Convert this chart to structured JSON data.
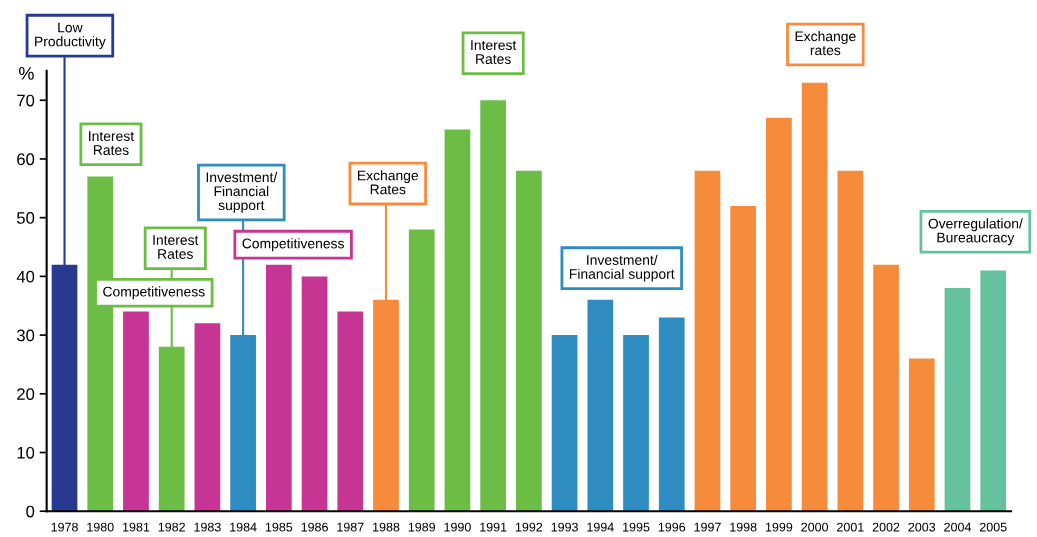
{
  "chart_data": {
    "type": "bar",
    "ylabel": "%",
    "categories": [
      "1978",
      "1980",
      "1981",
      "1982",
      "1983",
      "1984",
      "1985",
      "1986",
      "1987",
      "1988",
      "1989",
      "1990",
      "1991",
      "1992",
      "1993",
      "1994",
      "1995",
      "1996",
      "1997",
      "1998",
      "1999",
      "2000",
      "2001",
      "2002",
      "2003",
      "2004",
      "2005"
    ],
    "values": [
      42,
      57,
      34,
      28,
      32,
      30,
      42,
      40,
      34,
      36,
      48,
      65,
      70,
      58,
      30,
      36,
      30,
      33,
      58,
      52,
      67,
      73,
      58,
      42,
      26,
      38,
      41
    ],
    "colors": [
      "#283a8f",
      "#6cbd45",
      "#c63594",
      "#6cbd45",
      "#c63594",
      "#2e8cc0",
      "#c63594",
      "#c63594",
      "#c63594",
      "#f58b3b",
      "#6cbd45",
      "#6cbd45",
      "#6cbd45",
      "#6cbd45",
      "#2e8cc0",
      "#2e8cc0",
      "#2e8cc0",
      "#2e8cc0",
      "#f58b3b",
      "#f58b3b",
      "#f58b3b",
      "#f58b3b",
      "#f58b3b",
      "#f58b3b",
      "#f58b3b",
      "#66c29e",
      "#66c29e"
    ],
    "ylim": [
      0,
      75
    ],
    "yticks": [
      0,
      10,
      20,
      30,
      40,
      50,
      60,
      70
    ],
    "grid": false,
    "legend": false,
    "annotations": [
      {
        "text": "Low\nProductivity",
        "x": "1978",
        "y": 42
      },
      "Interest\nRates",
      {
        "text": "Interest\nRates",
        "x": "1982",
        "y": 28
      },
      "Competitiveness",
      {
        "text": "Investment/\nFinancial\nsupport",
        "x": "1984",
        "y": 30
      },
      "Competitiveness",
      {
        "text": "Exchange\nRates",
        "x": "1988",
        "y": 36
      },
      "Interest\nRates",
      "Investment/\nFinancial support",
      "Exchange\nrates",
      "Overregulation/\nBureaucracy"
    ]
  }
}
